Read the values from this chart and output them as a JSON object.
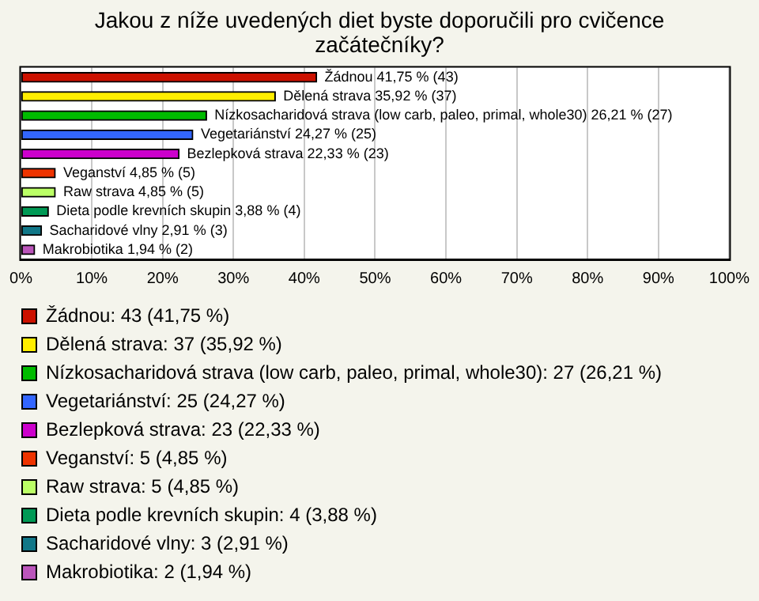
{
  "chart_data": {
    "type": "bar",
    "orientation": "horizontal",
    "title": "Jakou z níže uvedených diet byste doporučili pro cvičence začátečníky?",
    "categories": [
      null,
      null,
      null,
      null,
      null,
      null,
      null,
      null,
      null,
      null
    ],
    "series": [
      {
        "name": "Žádnou: 43 (41,75 %)",
        "color": "#cc1100",
        "values": [
          41.75,
          null,
          null,
          null,
          null,
          null,
          null,
          null,
          null,
          null
        ],
        "value_labels": [
          "Žádnou 41,75 % (43)",
          null,
          null,
          null,
          null,
          null,
          null,
          null,
          null,
          null
        ]
      },
      {
        "name": "Dělená strava: 37 (35,92 %)",
        "color": "#ffee00",
        "values": [
          null,
          35.92,
          null,
          null,
          null,
          null,
          null,
          null,
          null,
          null
        ],
        "value_labels": [
          null,
          "Dělená strava 35,92 % (37)",
          null,
          null,
          null,
          null,
          null,
          null,
          null,
          null
        ]
      },
      {
        "name": "Nízkosacharidová strava (low carb, paleo, primal, whole30): 27 (26,21 %)",
        "color": "#00bb00",
        "values": [
          null,
          null,
          26.21,
          null,
          null,
          null,
          null,
          null,
          null,
          null
        ],
        "value_labels": [
          null,
          null,
          "Nízkosacharidová strava (low carb, paleo, primal, whole30) 26,21 % (27)",
          null,
          null,
          null,
          null,
          null,
          null,
          null
        ]
      },
      {
        "name": "Vegetariánství: 25 (24,27 %)",
        "color": "#3366ff",
        "values": [
          null,
          null,
          null,
          24.27,
          null,
          null,
          null,
          null,
          null,
          null
        ],
        "value_labels": [
          null,
          null,
          null,
          "Vegetariánství 24,27 % (25)",
          null,
          null,
          null,
          null,
          null,
          null
        ]
      },
      {
        "name": "Bezlepková strava: 23 (22,33 %)",
        "color": "#cc00cc",
        "values": [
          null,
          null,
          null,
          null,
          22.33,
          null,
          null,
          null,
          null,
          null
        ],
        "value_labels": [
          null,
          null,
          null,
          null,
          "Bezlepková strava 22,33 % (23)",
          null,
          null,
          null,
          null,
          null
        ]
      },
      {
        "name": "Veganství: 5 (4,85 %)",
        "color": "#ee3300",
        "values": [
          null,
          null,
          null,
          null,
          null,
          4.85,
          null,
          null,
          null,
          null
        ],
        "value_labels": [
          null,
          null,
          null,
          null,
          null,
          "Veganství 4,85 % (5)",
          null,
          null,
          null,
          null
        ]
      },
      {
        "name": "Raw strava: 5 (4,85 %)",
        "color": "#bbff66",
        "values": [
          null,
          null,
          null,
          null,
          null,
          null,
          4.85,
          null,
          null,
          null
        ],
        "value_labels": [
          null,
          null,
          null,
          null,
          null,
          null,
          "Raw strava 4,85 % (5)",
          null,
          null,
          null
        ]
      },
      {
        "name": "Dieta podle krevních skupin: 4 (3,88 %)",
        "color": "#009955",
        "values": [
          null,
          null,
          null,
          null,
          null,
          null,
          null,
          3.88,
          null,
          null
        ],
        "value_labels": [
          null,
          null,
          null,
          null,
          null,
          null,
          null,
          "Dieta podle krevních skupin 3,88 % (4)",
          null,
          null
        ]
      },
      {
        "name": "Sacharidové vlny: 3 (2,91 %)",
        "color": "#117788",
        "values": [
          null,
          null,
          null,
          null,
          null,
          null,
          null,
          null,
          2.91,
          null
        ],
        "value_labels": [
          null,
          null,
          null,
          null,
          null,
          null,
          null,
          null,
          "Sacharidové vlny 2,91 % (3)",
          null
        ]
      },
      {
        "name": "Makrobiotika: 2 (1,94 %)",
        "color": "#bb55bb",
        "values": [
          null,
          null,
          null,
          null,
          null,
          null,
          null,
          null,
          null,
          1.94
        ],
        "value_labels": [
          null,
          null,
          null,
          null,
          null,
          null,
          null,
          null,
          null,
          "Makrobiotika 1,94 % (2)"
        ]
      }
    ],
    "xlim": [
      0,
      100
    ],
    "xticks": [
      {
        "value": 0,
        "label": "0%"
      },
      {
        "value": 10,
        "label": "10%"
      },
      {
        "value": 20,
        "label": "20%"
      },
      {
        "value": 30,
        "label": "30%"
      },
      {
        "value": 40,
        "label": "40%"
      },
      {
        "value": 50,
        "label": "50%"
      },
      {
        "value": 60,
        "label": "60%"
      },
      {
        "value": 70,
        "label": "70%"
      },
      {
        "value": 80,
        "label": "80%"
      },
      {
        "value": 90,
        "label": "90%"
      },
      {
        "value": 100,
        "label": "100%"
      }
    ],
    "grid": "x",
    "legend": "bottom",
    "tick_labels": "x"
  }
}
